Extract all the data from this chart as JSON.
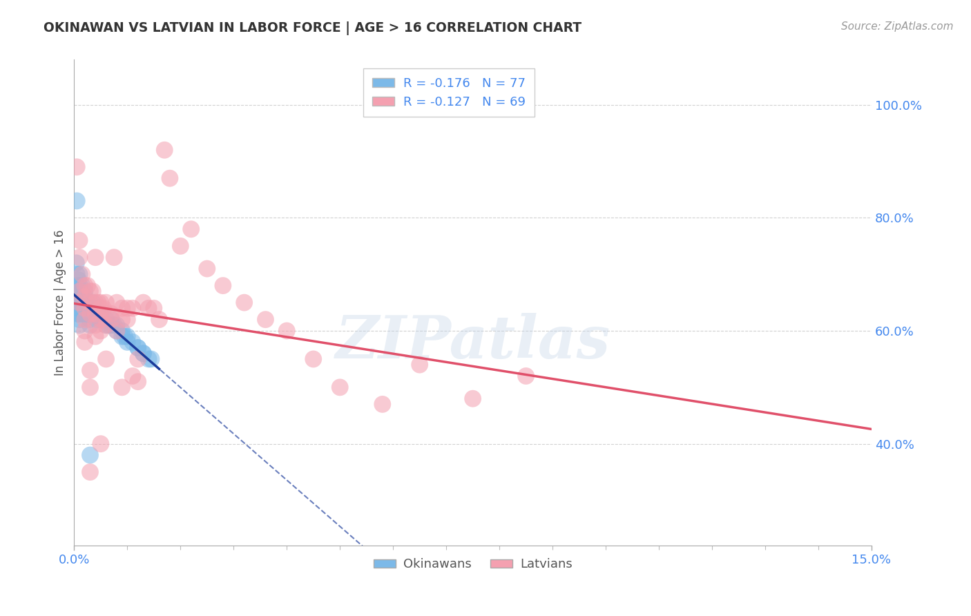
{
  "title": "OKINAWAN VS LATVIAN IN LABOR FORCE | AGE > 16 CORRELATION CHART",
  "source": "Source: ZipAtlas.com",
  "ylabel": "In Labor Force | Age > 16",
  "watermark": "ZIPatlas",
  "blue_R": -0.176,
  "blue_N": 77,
  "pink_R": -0.127,
  "pink_N": 69,
  "blue_color": "#7CB9E8",
  "pink_color": "#F4A0B0",
  "blue_line_color": "#1A3A9A",
  "pink_line_color": "#E0506A",
  "legend_blue_label": "Okinawans",
  "legend_pink_label": "Latvians",
  "xlim": [
    0.0,
    0.15
  ],
  "ylim": [
    0.22,
    1.08
  ],
  "ytick_vals": [
    0.4,
    0.6,
    0.8,
    1.0
  ],
  "ytick_labels": [
    "40.0%",
    "60.0%",
    "80.0%",
    "100.0%"
  ],
  "background_color": "#ffffff",
  "grid_color": "#cccccc",
  "axis_label_color": "#4488ee",
  "title_color": "#333333",
  "blue_x": [
    0.0002,
    0.0003,
    0.0004,
    0.0005,
    0.0005,
    0.0006,
    0.0006,
    0.0007,
    0.0007,
    0.0008,
    0.0008,
    0.0009,
    0.001,
    0.001,
    0.001,
    0.001,
    0.001,
    0.001,
    0.0012,
    0.0012,
    0.0013,
    0.0013,
    0.0015,
    0.0015,
    0.0015,
    0.0016,
    0.0016,
    0.0018,
    0.002,
    0.002,
    0.002,
    0.002,
    0.002,
    0.0022,
    0.0022,
    0.0024,
    0.0025,
    0.0025,
    0.003,
    0.003,
    0.003,
    0.003,
    0.0032,
    0.0035,
    0.0035,
    0.004,
    0.004,
    0.0042,
    0.0045,
    0.005,
    0.005,
    0.0052,
    0.006,
    0.006,
    0.0065,
    0.007,
    0.007,
    0.0075,
    0.008,
    0.008,
    0.009,
    0.009,
    0.0095,
    0.01,
    0.01,
    0.011,
    0.012,
    0.012,
    0.013,
    0.013,
    0.014,
    0.0145,
    0.0005,
    0.001,
    0.001,
    0.002,
    0.003
  ],
  "blue_y": [
    0.67,
    0.65,
    0.72,
    0.83,
    0.7,
    0.68,
    0.66,
    0.65,
    0.63,
    0.69,
    0.67,
    0.65,
    0.7,
    0.68,
    0.66,
    0.65,
    0.64,
    0.63,
    0.67,
    0.65,
    0.66,
    0.64,
    0.68,
    0.66,
    0.65,
    0.64,
    0.63,
    0.65,
    0.67,
    0.66,
    0.65,
    0.64,
    0.63,
    0.65,
    0.64,
    0.64,
    0.65,
    0.63,
    0.64,
    0.63,
    0.62,
    0.61,
    0.63,
    0.65,
    0.63,
    0.64,
    0.63,
    0.62,
    0.63,
    0.63,
    0.62,
    0.62,
    0.62,
    0.61,
    0.61,
    0.62,
    0.61,
    0.61,
    0.61,
    0.6,
    0.6,
    0.59,
    0.59,
    0.59,
    0.58,
    0.58,
    0.57,
    0.57,
    0.56,
    0.56,
    0.55,
    0.55,
    0.64,
    0.62,
    0.61,
    0.63,
    0.38
  ],
  "pink_x": [
    0.0005,
    0.001,
    0.001,
    0.001,
    0.001,
    0.0015,
    0.002,
    0.002,
    0.002,
    0.002,
    0.002,
    0.002,
    0.0025,
    0.003,
    0.003,
    0.003,
    0.003,
    0.003,
    0.003,
    0.0035,
    0.004,
    0.004,
    0.004,
    0.004,
    0.004,
    0.0045,
    0.005,
    0.005,
    0.005,
    0.005,
    0.005,
    0.0055,
    0.006,
    0.006,
    0.006,
    0.006,
    0.007,
    0.007,
    0.0075,
    0.008,
    0.008,
    0.009,
    0.009,
    0.009,
    0.01,
    0.01,
    0.011,
    0.011,
    0.012,
    0.012,
    0.013,
    0.014,
    0.015,
    0.016,
    0.017,
    0.018,
    0.02,
    0.022,
    0.025,
    0.028,
    0.032,
    0.036,
    0.04,
    0.045,
    0.05,
    0.058,
    0.065,
    0.075,
    0.085
  ],
  "pink_y": [
    0.89,
    0.76,
    0.73,
    0.67,
    0.65,
    0.7,
    0.68,
    0.66,
    0.64,
    0.62,
    0.6,
    0.58,
    0.68,
    0.67,
    0.65,
    0.63,
    0.53,
    0.5,
    0.35,
    0.67,
    0.65,
    0.63,
    0.61,
    0.59,
    0.73,
    0.65,
    0.65,
    0.64,
    0.62,
    0.6,
    0.4,
    0.64,
    0.65,
    0.63,
    0.61,
    0.55,
    0.63,
    0.62,
    0.73,
    0.65,
    0.6,
    0.64,
    0.62,
    0.5,
    0.64,
    0.62,
    0.64,
    0.52,
    0.55,
    0.51,
    0.65,
    0.64,
    0.64,
    0.62,
    0.92,
    0.87,
    0.75,
    0.78,
    0.71,
    0.68,
    0.65,
    0.62,
    0.6,
    0.55,
    0.5,
    0.47,
    0.54,
    0.48,
    0.52
  ]
}
